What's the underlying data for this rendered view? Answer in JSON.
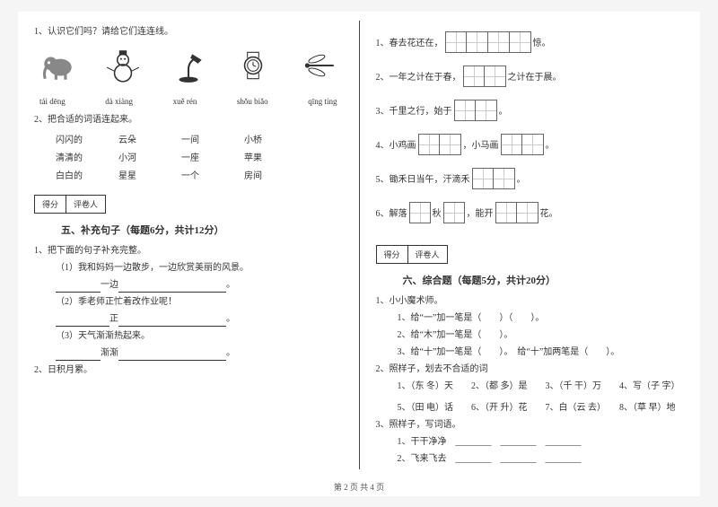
{
  "left": {
    "q1_prompt": "1、认识它们吗？请给它们连连线。",
    "pinyin": [
      "tái dēng",
      "dà xiàng",
      "xuě rén",
      "shǒu biǎo",
      "qīng tíng"
    ],
    "q2_prompt": "2、把合适的词语连起来。",
    "match_rows": [
      [
        "闪闪的",
        "云朵",
        "一间",
        "小桥"
      ],
      [
        "清清的",
        "小河",
        "一座",
        "苹果"
      ],
      [
        "白白的",
        "星星",
        "一个",
        "房间"
      ]
    ],
    "score_labels": [
      "得分",
      "评卷人"
    ],
    "section5_title": "五、补充句子（每题6分，共计12分）",
    "s5_q1": "1、把下面的句子补充完整。",
    "s5_items": [
      "（1）我和妈妈一边散步，一边欣赏美丽的风景。",
      "（2）季老师正忙着改作业呢！",
      "（3）天气渐渐热起来。"
    ],
    "s5_blank_labels": [
      "一边",
      "正",
      "渐渐"
    ],
    "s5_q2": "2、日积月累。"
  },
  "right": {
    "fills": [
      {
        "n": "1、",
        "pre": "春去花还在，",
        "boxes": 4,
        "post": "惊。"
      },
      {
        "n": "2、",
        "pre": "一年之计在于春，",
        "boxes": 2,
        "post": "之计在于晨。"
      },
      {
        "n": "3、",
        "pre": "千里之行，始于",
        "boxes": 2,
        "post": "。"
      },
      {
        "n": "4、",
        "pre": "小鸡画",
        "boxes": 2,
        "mid": "，小马画",
        "boxes2": 2,
        "post": "。"
      },
      {
        "n": "5、",
        "pre": "锄禾日当午，汗滴禾",
        "boxes": 2,
        "post": "。"
      },
      {
        "n": "6、",
        "pre": "解落",
        "boxes": 1,
        "mid": "秋",
        "boxes2": 1,
        "mid2": "，能开",
        "boxes3": 2,
        "post": "花。"
      }
    ],
    "score_labels": [
      "得分",
      "评卷人"
    ],
    "section6_title": "六、综合题（每题5分，共计20分）",
    "q1_title": "1、小小魔术师。",
    "q1_lines": [
      "1、给“一”加一笔是（　　）（　　）。",
      "2、给“木”加一笔是（　　）。",
      "3、给“十”加一笔是（　　）。　给“十”加两笔是（　　）。"
    ],
    "q2_title": "2、照样子，划去不合适的词",
    "q2_lines": [
      "1、（东 冬）天　　2、（都 多）是　　3、（千 干）万　　4、写（子 字）",
      "5、（田 电）话　　6、（开 升）花　　7、白（云 去）　　8、（草 早）地"
    ],
    "q3_title": "3、照样子，写词语。",
    "q3_lines": [
      "1、干干净净　________　________　________",
      "2、飞来飞去　________　________　________"
    ]
  },
  "footer": "第 2 页 共 4 页"
}
